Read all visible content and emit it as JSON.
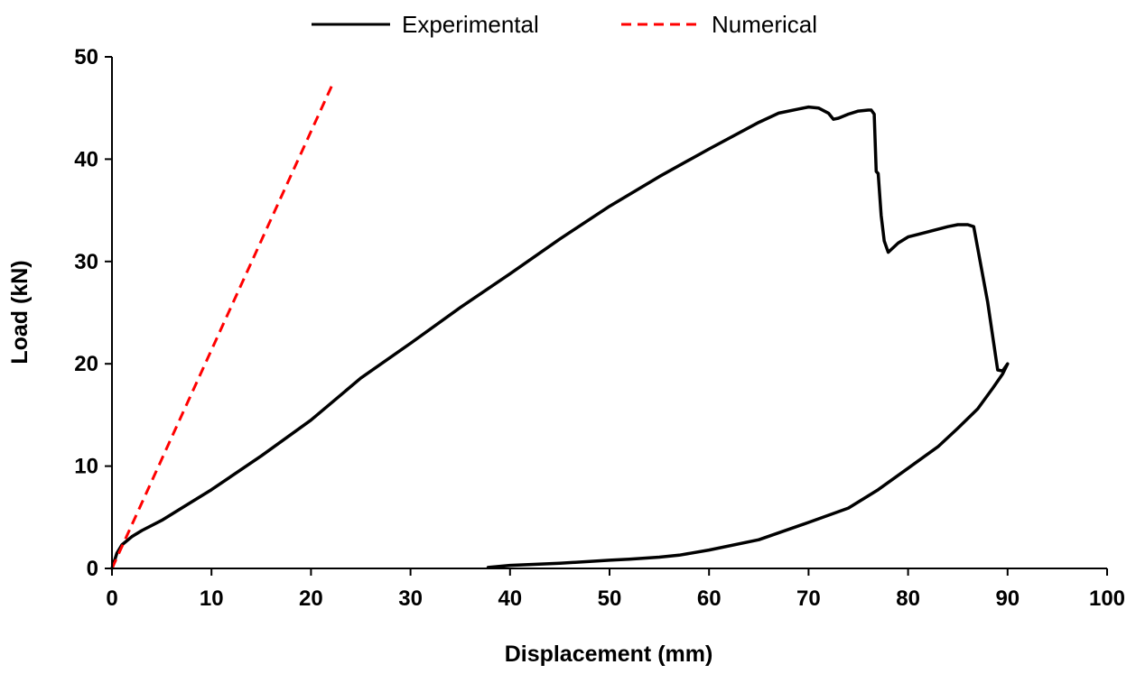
{
  "chart_data": {
    "type": "line",
    "title": "",
    "xlabel": "Displacement (mm)",
    "ylabel": "Load (kN)",
    "xlim": [
      0,
      100
    ],
    "ylim": [
      0,
      50
    ],
    "xticks": [
      0,
      10,
      20,
      30,
      40,
      50,
      60,
      70,
      80,
      90,
      100
    ],
    "yticks": [
      0,
      10,
      20,
      30,
      40,
      50
    ],
    "grid": false,
    "legend_position": "top-center",
    "series": [
      {
        "name": "Experimental",
        "color": "#000000",
        "line_style": "solid",
        "x": [
          0,
          0.5,
          1,
          2,
          3,
          5,
          7,
          10,
          15,
          20,
          25,
          30,
          35,
          40,
          45,
          50,
          55,
          60,
          65,
          67,
          69,
          70,
          71,
          72,
          72.5,
          73,
          74,
          75,
          76,
          76.3,
          76.6,
          76.8,
          77,
          77.3,
          77.6,
          78,
          79,
          80,
          82,
          84,
          85,
          86,
          86.6,
          88,
          89,
          89.5,
          90,
          89.5,
          88.5,
          87,
          85,
          83,
          80,
          77,
          74,
          70,
          65,
          60,
          57,
          55,
          52,
          50,
          45,
          40,
          37.8
        ],
        "y": [
          0,
          1.5,
          2.3,
          3.1,
          3.7,
          4.7,
          5.9,
          7.7,
          11.0,
          14.5,
          18.6,
          22.0,
          25.5,
          28.8,
          32.2,
          35.4,
          38.3,
          41.0,
          43.6,
          44.5,
          44.9,
          45.1,
          45.0,
          44.5,
          43.9,
          44.0,
          44.4,
          44.7,
          44.8,
          44.8,
          44.4,
          38.8,
          38.6,
          34.5,
          32.0,
          30.9,
          31.8,
          32.4,
          32.9,
          33.4,
          33.6,
          33.6,
          33.4,
          26.0,
          19.4,
          19.3,
          20.0,
          19.0,
          17.6,
          15.6,
          13.7,
          11.9,
          9.8,
          7.7,
          5.9,
          4.5,
          2.8,
          1.8,
          1.3,
          1.1,
          0.9,
          0.8,
          0.5,
          0.3,
          0.1
        ]
      },
      {
        "name": "Numerical",
        "color": "#ff0000",
        "line_style": "dashed",
        "x": [
          0,
          22.2
        ],
        "y": [
          0,
          47.4
        ]
      }
    ]
  }
}
